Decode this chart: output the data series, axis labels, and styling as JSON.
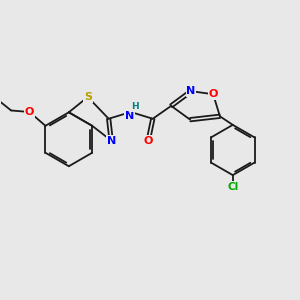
{
  "background_color": "#e8e8e8",
  "bond_color": "#1a1a1a",
  "atom_colors": {
    "S": "#b8a000",
    "N": "#0000ff",
    "O": "#ff0000",
    "Cl": "#00aa00",
    "H": "#008080"
  },
  "figsize": [
    3.0,
    3.0
  ],
  "dpi": 100
}
